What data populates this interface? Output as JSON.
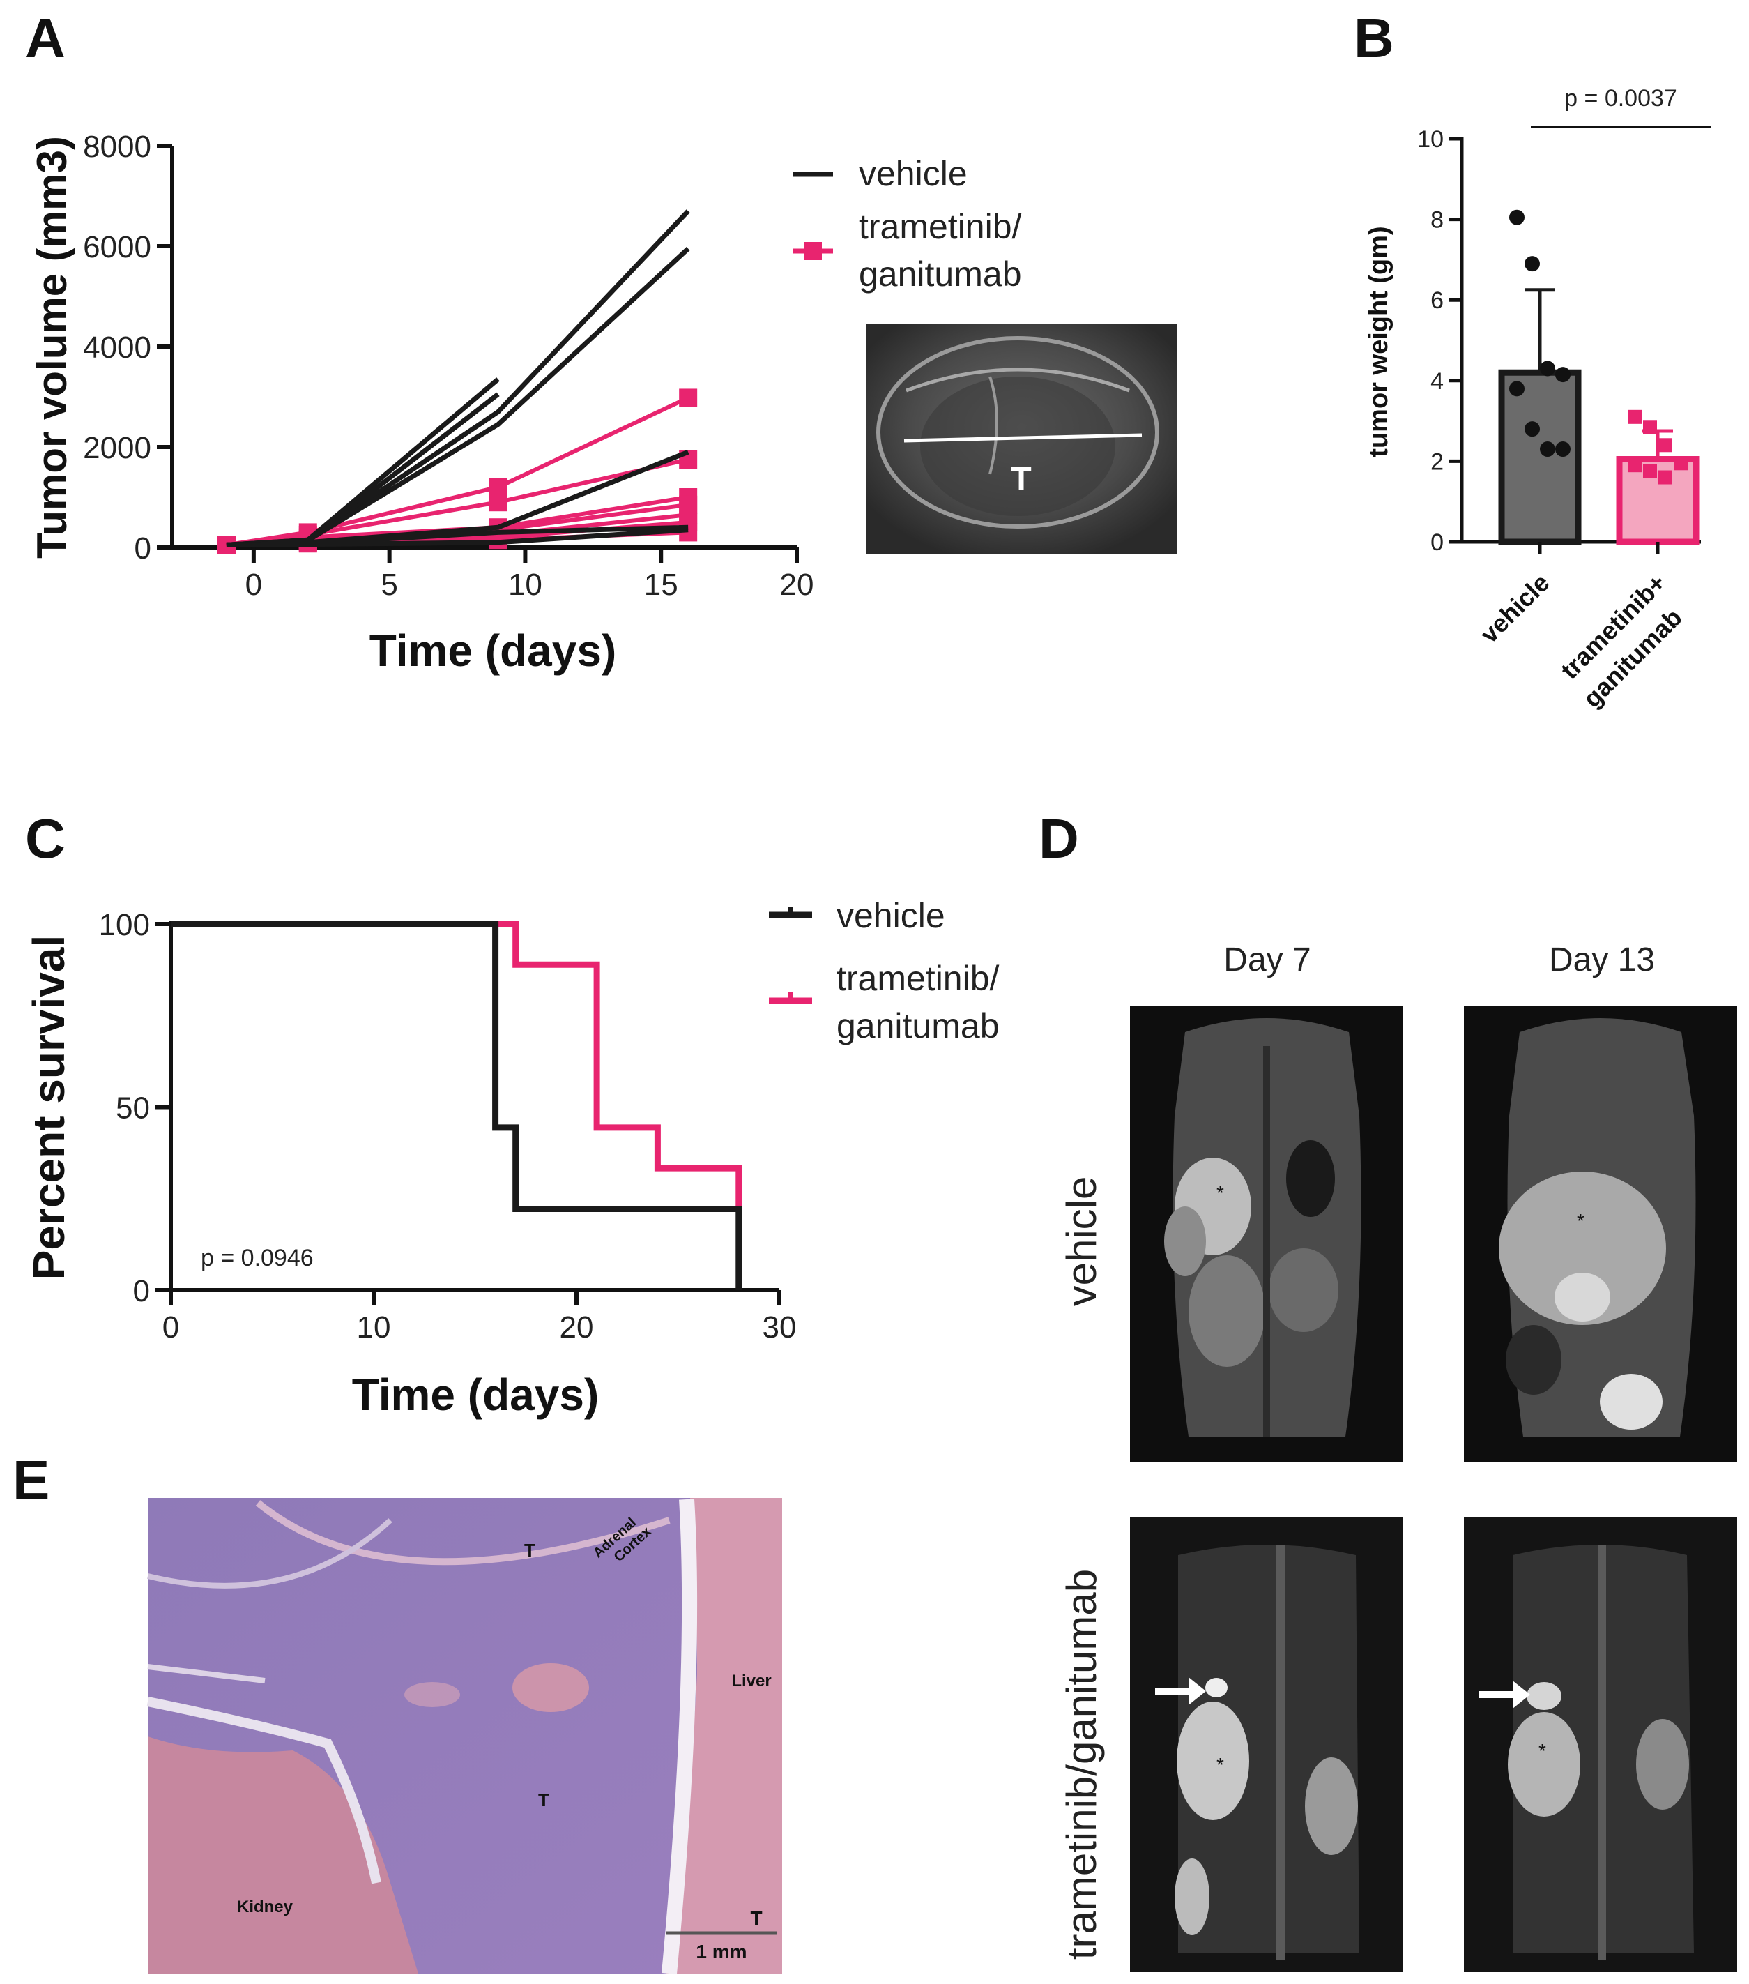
{
  "panel_labels": [
    "A",
    "B",
    "C",
    "D",
    "E"
  ],
  "colors": {
    "vehicle": "#1a1a1a",
    "treatment": "#e8246f",
    "bar_vehicle": "#6b6b6b",
    "bar_treatment": "#f4a6bf"
  },
  "chart_data": [
    {
      "panel": "A",
      "type": "line",
      "xlabel": "Time (days)",
      "ylabel": "Tumor volume (mm3)",
      "xlim": [
        -3,
        20
      ],
      "ylim": [
        0,
        8000
      ],
      "xticks": [
        0,
        5,
        10,
        15,
        20
      ],
      "yticks": [
        0,
        2000,
        4000,
        6000,
        8000
      ],
      "legend": [
        "vehicle",
        "trametinib/ ganitumab"
      ],
      "legend_lines": [
        [
          "vehicle"
        ],
        [
          "trametinib/",
          "ganitumab"
        ]
      ],
      "series": [
        {
          "group": "vehicle",
          "x": [
            -1,
            2,
            9
          ],
          "y": [
            50,
            150,
            3350
          ]
        },
        {
          "group": "vehicle",
          "x": [
            -1,
            2,
            9
          ],
          "y": [
            50,
            130,
            3050
          ]
        },
        {
          "group": "vehicle",
          "x": [
            -1,
            2,
            9,
            16
          ],
          "y": [
            50,
            150,
            2700,
            6700
          ]
        },
        {
          "group": "vehicle",
          "x": [
            -1,
            2,
            9,
            16
          ],
          "y": [
            50,
            140,
            2450,
            5950
          ]
        },
        {
          "group": "vehicle",
          "x": [
            -1,
            2,
            9,
            16
          ],
          "y": [
            50,
            100,
            400,
            1900
          ]
        },
        {
          "group": "vehicle",
          "x": [
            -1,
            2,
            9,
            16
          ],
          "y": [
            50,
            80,
            300,
            400
          ]
        },
        {
          "group": "vehicle",
          "x": [
            -1,
            2,
            9,
            16
          ],
          "y": [
            50,
            60,
            100,
            350
          ]
        },
        {
          "group": "trametinib/ganitumab",
          "x": [
            -1,
            2,
            9,
            16
          ],
          "y": [
            50,
            300,
            1200,
            2980
          ]
        },
        {
          "group": "trametinib/ganitumab",
          "x": [
            -1,
            2,
            9,
            16
          ],
          "y": [
            50,
            250,
            900,
            1750
          ]
        },
        {
          "group": "trametinib/ganitumab",
          "x": [
            -1,
            2,
            9,
            16
          ],
          "y": [
            50,
            200,
            400,
            1000
          ]
        },
        {
          "group": "trametinib/ganitumab",
          "x": [
            -1,
            2,
            9,
            16
          ],
          "y": [
            50,
            150,
            350,
            850
          ]
        },
        {
          "group": "trametinib/ganitumab",
          "x": [
            -1,
            2,
            9,
            16
          ],
          "y": [
            50,
            120,
            250,
            650
          ]
        },
        {
          "group": "trametinib/ganitumab",
          "x": [
            -1,
            2,
            9,
            16
          ],
          "y": [
            50,
            100,
            200,
            500
          ]
        },
        {
          "group": "trametinib/ganitumab",
          "x": [
            -1,
            2,
            9,
            16
          ],
          "y": [
            50,
            80,
            150,
            300
          ]
        }
      ]
    },
    {
      "panel": "B",
      "type": "bar",
      "ylabel": "tumor weight (gm)",
      "categories": [
        "vehicle",
        "trametinib+ ganitumab"
      ],
      "category_lines": [
        [
          "vehicle"
        ],
        [
          "trametinib+",
          "ganitumab"
        ]
      ],
      "values": [
        4.2,
        2.05
      ],
      "error_upper": [
        6.25,
        2.75
      ],
      "points": [
        [
          8.05,
          6.9,
          4.3,
          4.15,
          3.8,
          2.8,
          2.3,
          2.3
        ],
        [
          3.1,
          2.85,
          2.4,
          1.95,
          1.9,
          1.75,
          1.6
        ]
      ],
      "ylim": [
        0,
        10
      ],
      "yticks": [
        0,
        2,
        4,
        6,
        8,
        10
      ],
      "annotation": "p = 0.0037"
    },
    {
      "panel": "C",
      "type": "line",
      "xlabel": "Time (days)",
      "ylabel": "Percent survival",
      "xlim": [
        0,
        30
      ],
      "ylim": [
        0,
        100
      ],
      "xticks": [
        0,
        10,
        20,
        30
      ],
      "yticks": [
        0,
        50,
        100
      ],
      "legend": [
        "vehicle",
        "trametinib/ ganitumab"
      ],
      "legend_lines": [
        [
          "vehicle"
        ],
        [
          "trametinib/",
          "ganitumab"
        ]
      ],
      "annotation": "p = 0.0946",
      "series": [
        {
          "name": "vehicle",
          "x": [
            0,
            16,
            16,
            17,
            17,
            28,
            28
          ],
          "y": [
            100,
            100,
            44.4,
            44.4,
            22.2,
            22.2,
            0
          ]
        },
        {
          "name": "trametinib/ganitumab",
          "x": [
            16,
            17,
            17,
            21,
            21,
            24,
            24,
            28,
            28
          ],
          "y": [
            100,
            100,
            88.9,
            88.9,
            44.4,
            44.4,
            33.3,
            33.3,
            22.2
          ]
        }
      ]
    }
  ],
  "ultrasound": {
    "label": "T"
  },
  "mri": {
    "col_labels": [
      "Day 7",
      "Day 13"
    ],
    "row_labels": [
      "vehicle",
      "trametinib/ganitumab"
    ],
    "asterisk": "*"
  },
  "histology": {
    "labels": [
      "T",
      "Adrenal Cortex",
      "Liver",
      "T",
      "Kidney",
      "T"
    ],
    "adrenal_lines": [
      "Adrenal",
      "Cortex"
    ],
    "scale_bar": "1 mm"
  }
}
